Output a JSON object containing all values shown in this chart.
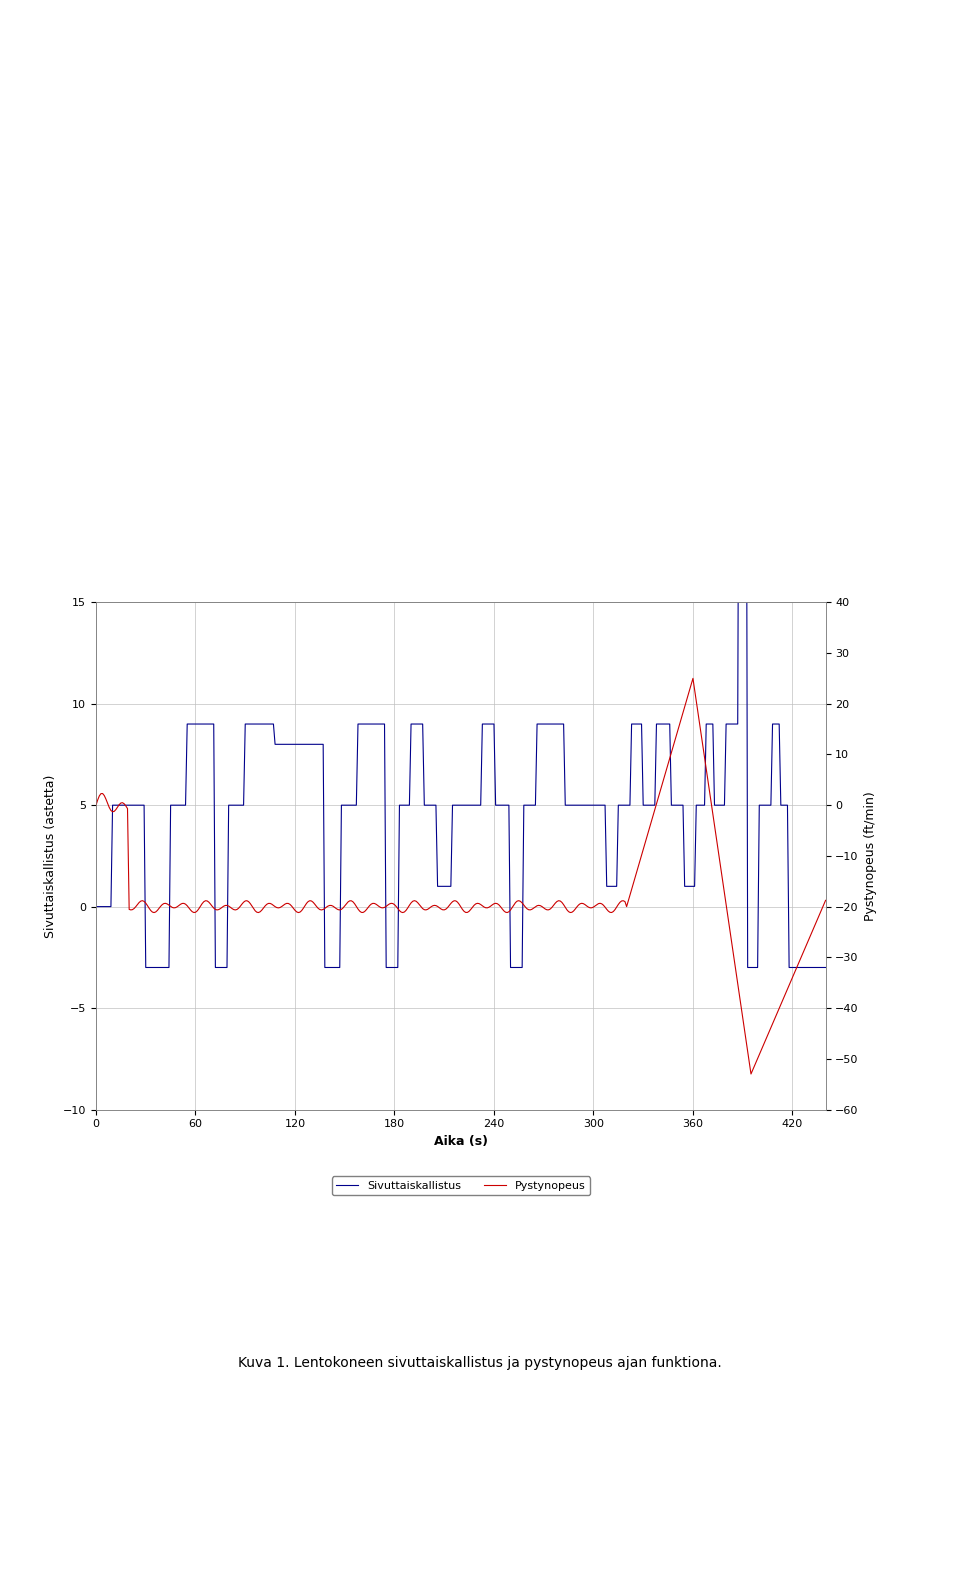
{
  "left_ylabel": "Sivuttaiskallistus (astetta)",
  "right_ylabel": "Pystynopeus (ft/min)",
  "xlabel": "Aika (s)",
  "left_ylim": [
    -10,
    15
  ],
  "right_ylim": [
    -60,
    40
  ],
  "left_yticks": [
    -10,
    -5,
    0,
    5,
    10,
    15
  ],
  "right_yticks": [
    -60,
    -50,
    -40,
    -30,
    -20,
    -10,
    0,
    10,
    20,
    30,
    40
  ],
  "xlim": [
    0,
    440
  ],
  "xticks": [
    0,
    60,
    120,
    180,
    240,
    300,
    360,
    420
  ],
  "legend_labels": [
    "Sivuttaiskallistus",
    "Pystynopeus"
  ],
  "blue_color": "#00008B",
  "red_color": "#CC0000",
  "caption": "Kuva 1. Lentokoneen sivuttaiskallistus ja pystynopeus ajan funktiona.",
  "grid_color": "#C0C0C0"
}
